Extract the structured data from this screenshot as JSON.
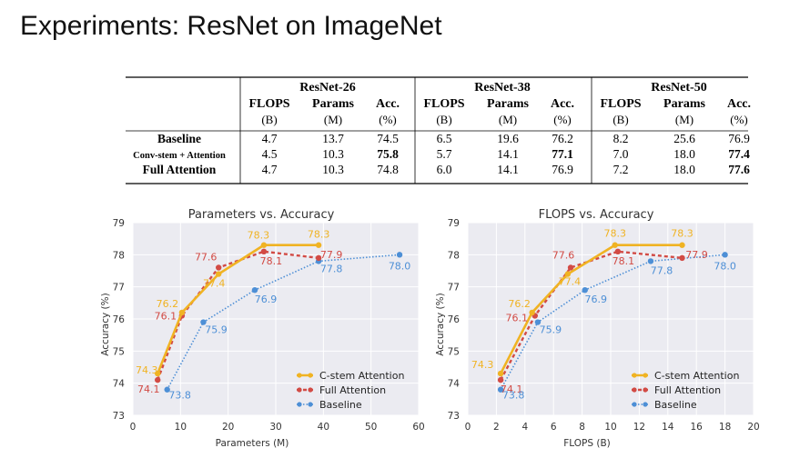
{
  "slide": {
    "title": "Experiments: ResNet on ImageNet"
  },
  "table": {
    "groups": [
      {
        "name": "ResNet-26",
        "cols": [
          {
            "top": "FLOPS",
            "sub": "(B)"
          },
          {
            "top": "Params",
            "sub": "(M)"
          },
          {
            "top": "Acc.",
            "sub": "(%)"
          }
        ]
      },
      {
        "name": "ResNet-38",
        "cols": [
          {
            "top": "FLOPS",
            "sub": "(B)"
          },
          {
            "top": "Params",
            "sub": "(M)"
          },
          {
            "top": "Acc.",
            "sub": "(%)"
          }
        ]
      },
      {
        "name": "ResNet-50",
        "cols": [
          {
            "top": "FLOPS",
            "sub": "(B)"
          },
          {
            "top": "Params",
            "sub": "(M)"
          },
          {
            "top": "Acc.",
            "sub": "(%)"
          }
        ]
      }
    ],
    "rows": [
      {
        "label": "Baseline",
        "values": [
          "4.7",
          "13.7",
          "74.5",
          "6.5",
          "19.6",
          "76.2",
          "8.2",
          "25.6",
          "76.9"
        ],
        "bold": []
      },
      {
        "label": "Conv-stem + Attention",
        "values": [
          "4.5",
          "10.3",
          "75.8",
          "5.7",
          "14.1",
          "77.1",
          "7.0",
          "18.0",
          "77.4"
        ],
        "bold": [
          2,
          5,
          8
        ]
      },
      {
        "label": "Full Attention",
        "values": [
          "4.7",
          "10.3",
          "74.8",
          "6.0",
          "14.1",
          "76.9",
          "7.2",
          "18.0",
          "77.6"
        ],
        "bold": [
          8
        ]
      }
    ]
  },
  "chart_data": [
    {
      "type": "line",
      "title": "Parameters vs. Accuracy",
      "xlabel": "Parameters (M)",
      "ylabel": "Accuracy (%)",
      "xlim": [
        0,
        60
      ],
      "ylim": [
        73,
        79
      ],
      "xticks": [
        "0",
        "10",
        "20",
        "30",
        "40",
        "50",
        "60"
      ],
      "yticks": [
        "73",
        "74",
        "75",
        "76",
        "77",
        "78",
        "79"
      ],
      "grid": true,
      "legend_position": "bottom-right",
      "series": [
        {
          "name": "C-stem Attention",
          "color": "#f0b323",
          "style": "solid",
          "x": [
            5.2,
            10.3,
            18.0,
            27.5,
            39.0
          ],
          "y": [
            74.3,
            76.2,
            77.4,
            78.3,
            78.3
          ],
          "labels": [
            "74.3",
            "76.2",
            "77.4",
            "78.3",
            "78.3"
          ]
        },
        {
          "name": "Full Attention",
          "color": "#d24b45",
          "style": "dashed",
          "x": [
            5.2,
            10.3,
            18.0,
            27.5,
            39.0
          ],
          "y": [
            74.1,
            76.1,
            77.6,
            78.1,
            77.9
          ],
          "labels": [
            "74.1",
            "76.1",
            "77.6",
            "78.1",
            "77.9"
          ]
        },
        {
          "name": "Baseline",
          "color": "#4d8fd6",
          "style": "dotted",
          "x": [
            7.2,
            14.8,
            25.6,
            39.0,
            56.0
          ],
          "y": [
            73.8,
            75.9,
            76.9,
            77.8,
            78.0
          ],
          "labels": [
            "73.8",
            "75.9",
            "76.9",
            "77.8",
            "78.0"
          ]
        }
      ]
    },
    {
      "type": "line",
      "title": "FLOPS vs. Accuracy",
      "xlabel": "FLOPS (B)",
      "ylabel": "Accuracy (%)",
      "xlim": [
        0,
        20
      ],
      "ylim": [
        73,
        79
      ],
      "xticks": [
        "0",
        "2",
        "4",
        "6",
        "8",
        "10",
        "12",
        "14",
        "16",
        "18",
        "20"
      ],
      "yticks": [
        "73",
        "74",
        "75",
        "76",
        "77",
        "78",
        "79"
      ],
      "grid": true,
      "legend_position": "bottom-right",
      "series": [
        {
          "name": "C-stem Attention",
          "color": "#f0b323",
          "style": "solid",
          "x": [
            2.3,
            4.5,
            7.0,
            10.3,
            15.0
          ],
          "y": [
            74.3,
            76.2,
            77.4,
            78.3,
            78.3
          ],
          "labels": [
            "74.3",
            "76.2",
            "77.4",
            "78.3",
            "78.3"
          ]
        },
        {
          "name": "Full Attention",
          "color": "#d24b45",
          "style": "dashed",
          "x": [
            2.3,
            4.7,
            7.2,
            10.5,
            15.0
          ],
          "y": [
            74.1,
            76.1,
            77.6,
            78.1,
            77.9
          ],
          "labels": [
            "74.1",
            "76.1",
            "77.6",
            "78.1",
            "77.9"
          ]
        },
        {
          "name": "Baseline",
          "color": "#4d8fd6",
          "style": "dotted",
          "x": [
            2.3,
            4.9,
            8.2,
            12.8,
            18.0
          ],
          "y": [
            73.8,
            75.9,
            76.9,
            77.8,
            78.0
          ],
          "labels": [
            "73.8",
            "75.9",
            "76.9",
            "77.8",
            "78.0"
          ]
        }
      ]
    }
  ]
}
